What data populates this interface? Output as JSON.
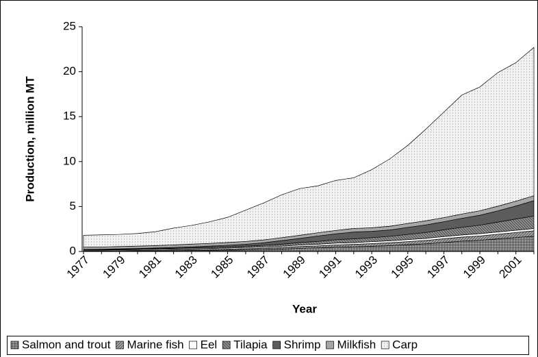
{
  "chart_data": {
    "type": "stacked-area",
    "x_label": "Year",
    "y_label": "Production, million MT",
    "categories": [
      "1977",
      null,
      "1979",
      null,
      "1981",
      null,
      "1983",
      null,
      "1985",
      null,
      "1987",
      null,
      "1989",
      null,
      "1991",
      null,
      "1993",
      null,
      "1995",
      null,
      "1997",
      null,
      "1999",
      null,
      "2001",
      null
    ],
    "ylim": [
      0,
      25
    ],
    "yticks": [
      0,
      5,
      10,
      15,
      20,
      25
    ],
    "legend": "bottom",
    "series": [
      {
        "name": "Salmon and trout",
        "color": "#bdbdbd",
        "values": [
          0.02,
          0.03,
          0.04,
          0.05,
          0.06,
          0.08,
          0.1,
          0.12,
          0.15,
          0.18,
          0.22,
          0.27,
          0.35,
          0.4,
          0.48,
          0.52,
          0.58,
          0.65,
          0.75,
          0.85,
          1.0,
          1.15,
          1.25,
          1.4,
          1.55,
          1.7
        ]
      },
      {
        "name": "Marine fish",
        "color": "#9e9e9e",
        "values": [
          0.05,
          0.05,
          0.06,
          0.07,
          0.08,
          0.09,
          0.1,
          0.11,
          0.12,
          0.14,
          0.15,
          0.17,
          0.2,
          0.22,
          0.25,
          0.27,
          0.3,
          0.32,
          0.35,
          0.38,
          0.42,
          0.45,
          0.48,
          0.52,
          0.56,
          0.6
        ]
      },
      {
        "name": "Eel",
        "color": "#ffffff",
        "values": [
          0.08,
          0.08,
          0.09,
          0.09,
          0.1,
          0.1,
          0.11,
          0.11,
          0.12,
          0.13,
          0.14,
          0.15,
          0.17,
          0.18,
          0.2,
          0.2,
          0.21,
          0.22,
          0.22,
          0.23,
          0.24,
          0.24,
          0.25,
          0.25,
          0.25,
          0.25
        ]
      },
      {
        "name": "Tilapia",
        "color": "#8a8a8a",
        "values": [
          0.05,
          0.05,
          0.06,
          0.07,
          0.08,
          0.09,
          0.1,
          0.12,
          0.13,
          0.15,
          0.18,
          0.22,
          0.28,
          0.32,
          0.38,
          0.42,
          0.45,
          0.5,
          0.58,
          0.65,
          0.75,
          0.85,
          0.95,
          1.1,
          1.25,
          1.4
        ]
      },
      {
        "name": "Shrimp",
        "color": "#7a7a7a",
        "values": [
          0.03,
          0.04,
          0.05,
          0.06,
          0.07,
          0.09,
          0.11,
          0.14,
          0.17,
          0.2,
          0.28,
          0.4,
          0.45,
          0.6,
          0.65,
          0.75,
          0.7,
          0.7,
          0.78,
          0.85,
          0.9,
          1.0,
          1.1,
          1.25,
          1.45,
          1.7
        ]
      },
      {
        "name": "Milkfish",
        "color": "#a6a6a6",
        "values": [
          0.25,
          0.25,
          0.25,
          0.26,
          0.27,
          0.28,
          0.3,
          0.3,
          0.31,
          0.32,
          0.32,
          0.33,
          0.35,
          0.36,
          0.38,
          0.4,
          0.4,
          0.42,
          0.44,
          0.45,
          0.46,
          0.48,
          0.5,
          0.52,
          0.54,
          0.55
        ]
      },
      {
        "name": "Carp",
        "color": "#f2f2f2",
        "values": [
          1.32,
          1.35,
          1.35,
          1.4,
          1.54,
          1.87,
          2.08,
          2.4,
          2.8,
          3.48,
          4.11,
          4.76,
          5.2,
          5.22,
          5.56,
          5.64,
          6.46,
          7.49,
          8.68,
          10.19,
          11.73,
          13.23,
          13.77,
          14.86,
          15.4,
          16.5
        ]
      }
    ]
  }
}
